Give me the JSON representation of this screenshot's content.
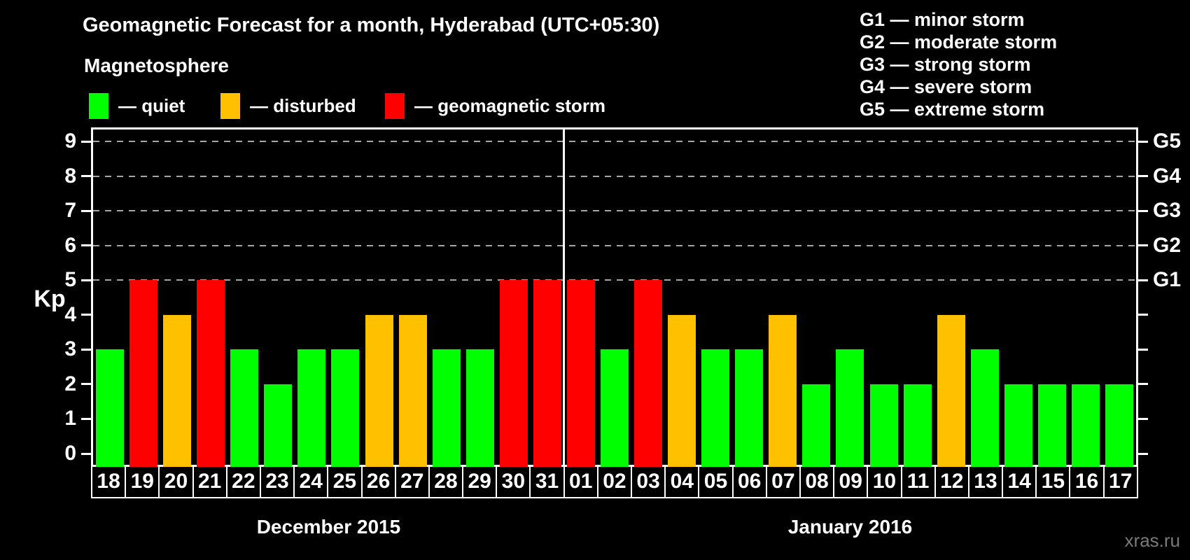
{
  "header": {
    "title": "Geomagnetic Forecast for a month, Hyderabad (UTC+05:30)",
    "subtitle": "Magnetosphere"
  },
  "legend": {
    "items": [
      {
        "swatch": "quiet",
        "label": "— quiet"
      },
      {
        "swatch": "disturbed",
        "label": "— disturbed"
      },
      {
        "swatch": "storm",
        "label": "— geomagnetic storm"
      }
    ]
  },
  "storm_scale_legend": {
    "items": [
      "G1 — minor storm",
      "G2 — moderate storm",
      "G3 — strong storm",
      "G4 — severe storm",
      "G5 — extreme storm"
    ]
  },
  "colors": {
    "quiet": "#00ff00",
    "disturbed": "#ffc000",
    "storm": "#ff0000",
    "axis": "#ffffff",
    "grid": "#a6a6a6",
    "background": "#000000",
    "watermark": "#7a7a7a"
  },
  "chart_data": {
    "type": "bar",
    "title": "Geomagnetic Forecast for a month, Hyderabad (UTC+05:30)",
    "ylabel": "Kp",
    "ylim": [
      0,
      9
    ],
    "grid": "dashed horizontal lines at Kp 5 to 9",
    "legend_position": "top",
    "categories": [
      "18",
      "19",
      "20",
      "21",
      "22",
      "23",
      "24",
      "25",
      "26",
      "27",
      "28",
      "29",
      "30",
      "31",
      "01",
      "02",
      "03",
      "04",
      "05",
      "06",
      "07",
      "08",
      "09",
      "10",
      "11",
      "12",
      "13",
      "14",
      "15",
      "16",
      "17"
    ],
    "values": [
      3,
      5,
      4,
      5,
      3,
      2,
      3,
      3,
      4,
      4,
      3,
      3,
      5,
      5,
      5,
      3,
      5,
      4,
      3,
      3,
      4,
      2,
      3,
      2,
      2,
      4,
      3,
      2,
      2,
      2,
      2
    ],
    "color_coding": {
      "quiet": "Kp 0-3 green",
      "disturbed": "Kp 4 orange",
      "storm": "Kp 5+ red"
    },
    "months": [
      {
        "label": "December 2015",
        "days": 14
      },
      {
        "label": "January 2016",
        "days": 17
      }
    ],
    "axis": {
      "y_ticks": [
        0,
        1,
        2,
        3,
        4,
        5,
        6,
        7,
        8,
        9
      ],
      "gridlines_at_kp": [
        5,
        6,
        7,
        8,
        9
      ],
      "right_scale": [
        {
          "kp": 5,
          "label": "G1"
        },
        {
          "kp": 6,
          "label": "G2"
        },
        {
          "kp": 7,
          "label": "G3"
        },
        {
          "kp": 8,
          "label": "G4"
        },
        {
          "kp": 9,
          "label": "G5"
        }
      ]
    }
  },
  "watermark": "xras.ru"
}
